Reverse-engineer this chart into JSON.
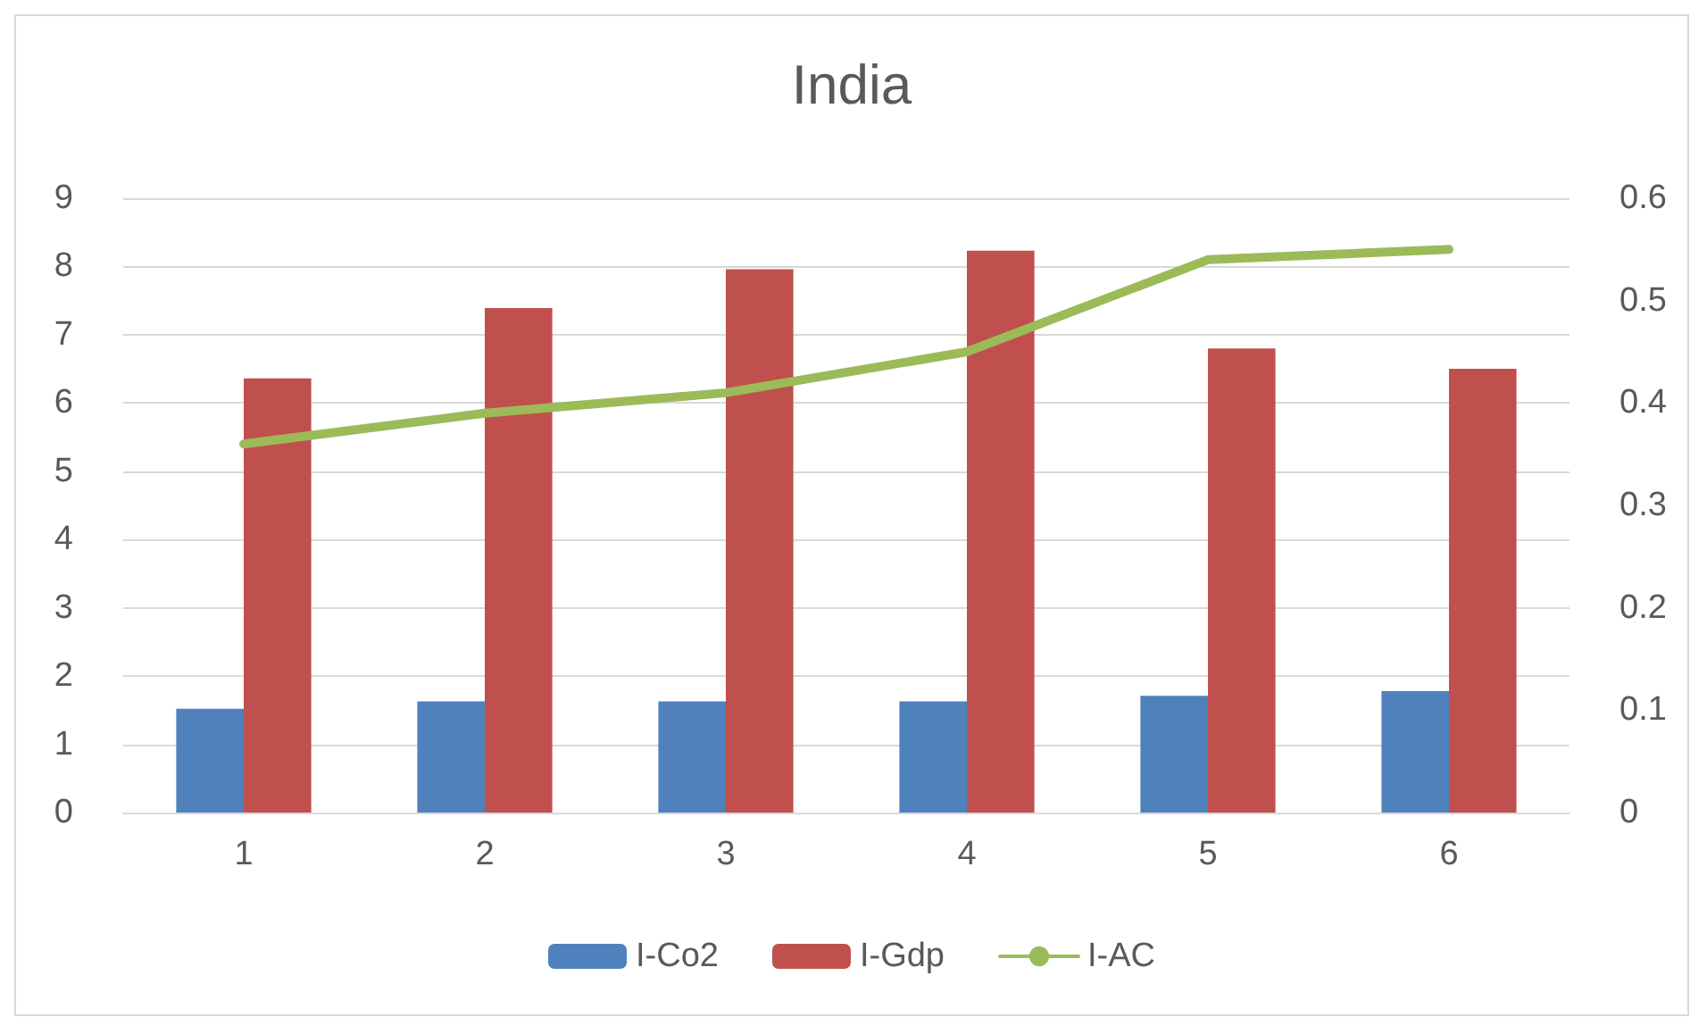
{
  "chart_data": {
    "type": "bar",
    "title": "India",
    "categories": [
      "1",
      "2",
      "3",
      "4",
      "5",
      "6"
    ],
    "series": [
      {
        "name": "I-Co2",
        "color": "#4f81bd",
        "values": [
          1.52,
          1.63,
          1.63,
          1.63,
          1.71,
          1.78
        ]
      },
      {
        "name": "I-Gdp",
        "color": "#c0504d",
        "values": [
          6.36,
          7.39,
          7.96,
          8.23,
          6.8,
          6.5
        ]
      },
      {
        "name": "I-AC",
        "type": "line",
        "axis": "y2",
        "color": "#9bbb59",
        "values": [
          0.36,
          0.39,
          0.41,
          0.45,
          0.54,
          0.55
        ]
      }
    ],
    "ylim": [
      0,
      9
    ],
    "yticks": [
      0,
      1,
      2,
      3,
      4,
      5,
      6,
      7,
      8,
      9
    ],
    "y2lim": [
      0,
      0.6
    ],
    "y2ticks": [
      0,
      0.1,
      0.2,
      0.3,
      0.4,
      0.5,
      0.6
    ],
    "grid": "y",
    "legend": "bottom",
    "marker": "none",
    "line_style": "solid"
  }
}
